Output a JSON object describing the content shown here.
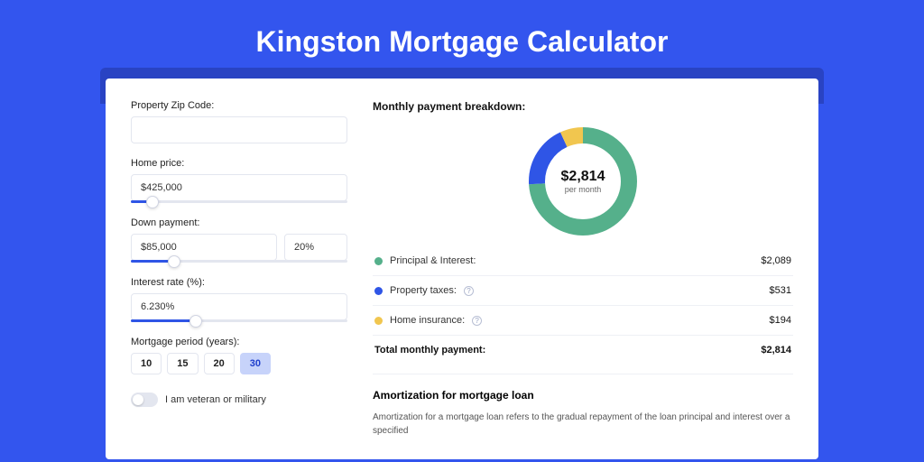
{
  "title": "Kingston Mortgage Calculator",
  "colors": {
    "page_bg": "#3355ee",
    "card_shadow": "#2943c3",
    "accent": "#2f55e6"
  },
  "form": {
    "zip_label": "Property Zip Code:",
    "zip_value": "",
    "price_label": "Home price:",
    "price_value": "$425,000",
    "price_slider_pct": 10,
    "down_label": "Down payment:",
    "down_amount": "$85,000",
    "down_pct": "20%",
    "down_slider_pct": 20,
    "rate_label": "Interest rate (%):",
    "rate_value": "6.230%",
    "rate_slider_pct": 30,
    "period_label": "Mortgage period (years):",
    "period_options": [
      "10",
      "15",
      "20",
      "30"
    ],
    "period_selected": "30",
    "veteran_label": "I am veteran or military",
    "veteran_on": false
  },
  "breakdown": {
    "title": "Monthly payment breakdown:",
    "center_value": "$2,814",
    "center_sub": "per month",
    "items": [
      {
        "label": "Principal & Interest:",
        "value": "$2,089",
        "color": "#55b08b",
        "help": false,
        "pct": 74
      },
      {
        "label": "Property taxes:",
        "value": "$531",
        "color": "#2f55e6",
        "help": true,
        "pct": 19
      },
      {
        "label": "Home insurance:",
        "value": "$194",
        "color": "#f1c64f",
        "help": true,
        "pct": 7
      }
    ],
    "total_label": "Total monthly payment:",
    "total_value": "$2,814",
    "donut": {
      "size": 120,
      "stroke": 18,
      "bg": "#ffffff"
    }
  },
  "amortization": {
    "title": "Amortization for mortgage loan",
    "body": "Amortization for a mortgage loan refers to the gradual repayment of the loan principal and interest over a specified"
  }
}
